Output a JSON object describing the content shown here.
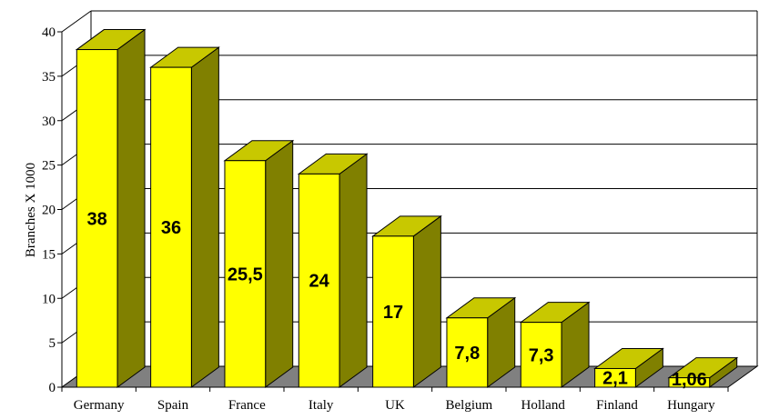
{
  "chart_data": {
    "type": "bar",
    "title": "",
    "xlabel": "",
    "ylabel": "Branches X 1000",
    "categories": [
      "Germany",
      "Spain",
      "France",
      "Italy",
      "UK",
      "Belgium",
      "Holland",
      "Finland",
      "Hungary"
    ],
    "values": [
      38,
      36,
      25.5,
      24,
      17,
      7.8,
      7.3,
      2.1,
      1.06
    ],
    "data_labels": [
      "38",
      "36",
      "25,5",
      "24",
      "17",
      "7,8",
      "7,3",
      "2,1",
      "1,06"
    ],
    "ylim": [
      0,
      40
    ],
    "yticks": [
      "0",
      "5",
      "10",
      "15",
      "20",
      "25",
      "30",
      "35",
      "40"
    ],
    "grid": true,
    "legend": "none",
    "style": "3d-column",
    "colors": {
      "bar_front": "#ffff00",
      "bar_top": "#c8c800",
      "bar_side": "#808000",
      "floor": "#808080",
      "grid": "#000000",
      "background": "#ffffff"
    }
  }
}
